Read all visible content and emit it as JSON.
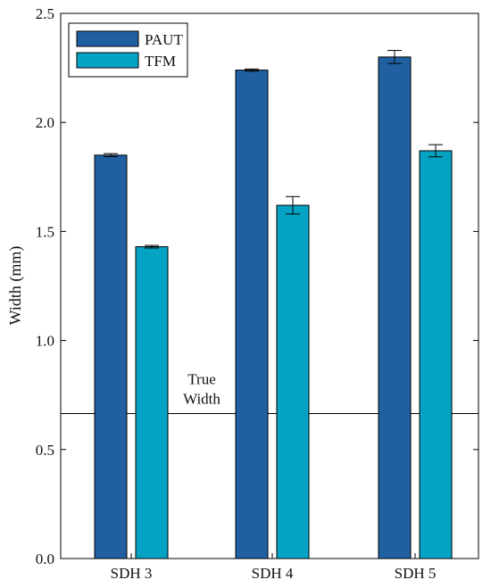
{
  "chart_data": {
    "type": "bar",
    "categories": [
      "SDH 3",
      "SDH 4",
      "SDH 5"
    ],
    "series": [
      {
        "name": "PAUT",
        "values": [
          1.85,
          2.24,
          2.3
        ],
        "errors": [
          0.007,
          0.005,
          0.03
        ],
        "color": "#2060a0"
      },
      {
        "name": "TFM",
        "values": [
          1.43,
          1.62,
          1.87
        ],
        "errors": [
          0.006,
          0.04,
          0.028
        ],
        "color": "#04a3c4"
      }
    ],
    "title": "",
    "xlabel": "",
    "ylabel": "Width (mm)",
    "ylim": [
      0,
      2.5
    ],
    "yticks": [
      "0.0",
      "0.5",
      "1.0",
      "1.5",
      "2.0",
      "2.5"
    ],
    "reference_line": {
      "value": 0.665,
      "label_lines": [
        "True",
        "Width"
      ]
    },
    "legend_position": "top-left",
    "grid": false
  }
}
